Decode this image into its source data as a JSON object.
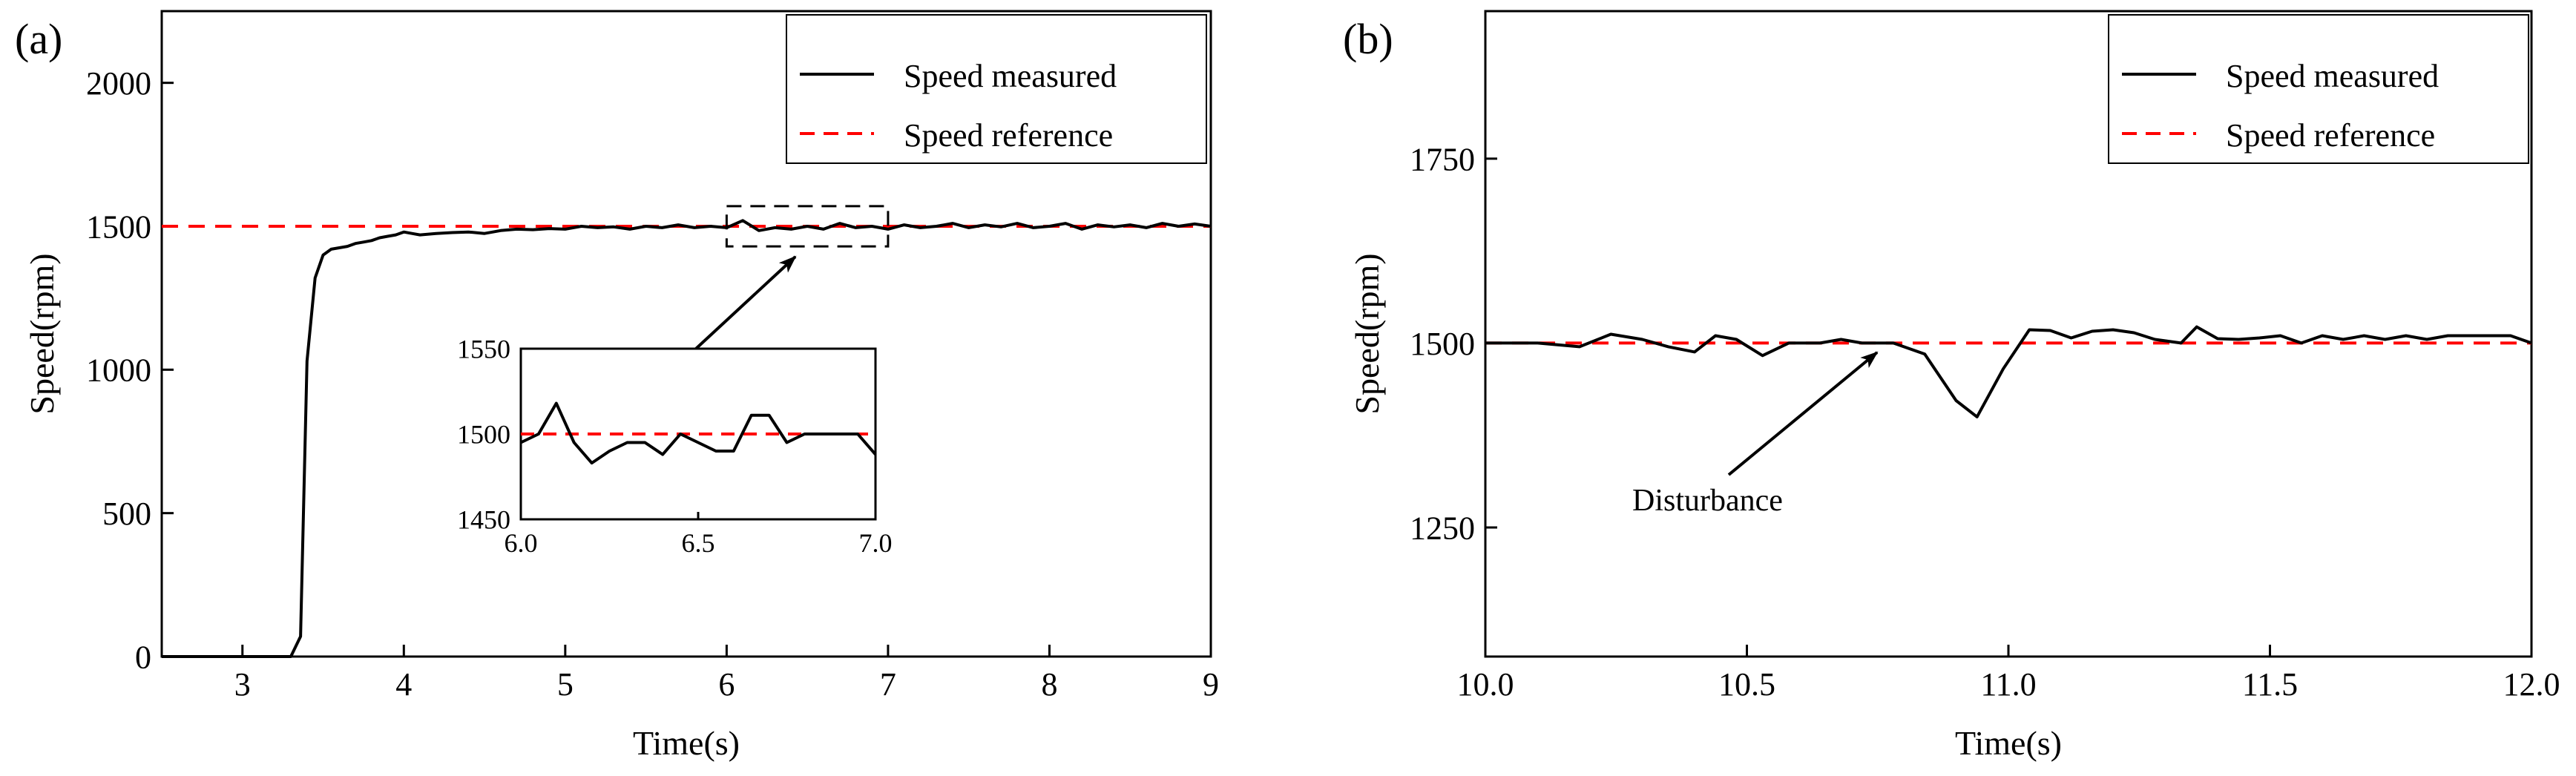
{
  "chart_data": [
    {
      "panel": "(a)",
      "type": "line",
      "xlabel": "Time(s)",
      "ylabel": "Speed(rpm)",
      "xlim": [
        2.5,
        9
      ],
      "ylim": [
        0,
        2250
      ],
      "xticks": [
        "3",
        "4",
        "5",
        "6",
        "7",
        "8",
        "9"
      ],
      "yticks": [
        "0",
        "500",
        "1000",
        "1500",
        "2000"
      ],
      "legend": {
        "position": "top-right",
        "entries": [
          "Speed measured",
          "Speed reference"
        ]
      },
      "series": [
        {
          "name": "Speed measured",
          "style": "solid",
          "color": "#000000",
          "x": [
            2.5,
            3.3,
            3.36,
            3.4,
            3.45,
            3.5,
            3.55,
            3.6,
            3.65,
            3.7,
            3.75,
            3.8,
            3.85,
            3.9,
            3.95,
            4.0,
            4.05,
            4.1,
            4.2,
            4.3,
            4.4,
            4.5,
            4.6,
            4.7,
            4.8,
            4.9,
            5.0,
            5.1,
            5.2,
            5.3,
            5.4,
            5.5,
            5.6,
            5.7,
            5.8,
            5.9,
            6.0,
            6.1,
            6.2,
            6.3,
            6.4,
            6.5,
            6.6,
            6.7,
            6.8,
            6.9,
            7.0,
            7.1,
            7.2,
            7.3,
            7.4,
            7.5,
            7.6,
            7.7,
            7.8,
            7.9,
            8.0,
            8.1,
            8.2,
            8.3,
            8.4,
            8.5,
            8.6,
            8.7,
            8.8,
            8.9,
            9.0
          ],
          "y": [
            0,
            0,
            70,
            1030,
            1320,
            1400,
            1420,
            1425,
            1430,
            1440,
            1445,
            1450,
            1460,
            1465,
            1470,
            1480,
            1475,
            1470,
            1475,
            1478,
            1480,
            1475,
            1485,
            1490,
            1488,
            1492,
            1490,
            1500,
            1495,
            1498,
            1490,
            1500,
            1495,
            1505,
            1495,
            1500,
            1495,
            1520,
            1485,
            1495,
            1490,
            1500,
            1490,
            1510,
            1495,
            1500,
            1490,
            1505,
            1495,
            1500,
            1510,
            1495,
            1505,
            1498,
            1510,
            1495,
            1500,
            1510,
            1490,
            1505,
            1498,
            1505,
            1495,
            1510,
            1500,
            1508,
            1500
          ]
        },
        {
          "name": "Speed reference",
          "style": "dashed",
          "color": "#ff0000",
          "x": [
            2.5,
            9
          ],
          "y": [
            1500,
            1500
          ]
        }
      ],
      "inset": {
        "xlim": [
          6.0,
          7.0
        ],
        "ylim": [
          1450,
          1550
        ],
        "xticks": [
          "6.0",
          "6.5",
          "7.0"
        ],
        "yticks": [
          "1450",
          "1500",
          "1550"
        ],
        "measured": {
          "x": [
            6.0,
            6.05,
            6.1,
            6.15,
            6.2,
            6.25,
            6.3,
            6.35,
            6.4,
            6.45,
            6.5,
            6.55,
            6.6,
            6.65,
            6.7,
            6.75,
            6.8,
            6.85,
            6.9,
            6.95,
            7.0
          ],
          "y": [
            1495,
            1500,
            1518,
            1495,
            1483,
            1490,
            1495,
            1495,
            1488,
            1500,
            1495,
            1490,
            1490,
            1511,
            1511,
            1495,
            1500,
            1500,
            1500,
            1500,
            1488
          ]
        },
        "reference": 1500,
        "zoom_box_x": [
          6.0,
          7.0
        ],
        "zoom_box_y": [
          1430,
          1570
        ]
      }
    },
    {
      "panel": "(b)",
      "type": "line",
      "xlabel": "Time(s)",
      "ylabel": "Speed(rpm)",
      "xlim": [
        10.0,
        12.0
      ],
      "ylim": [
        1075,
        1950
      ],
      "xticks": [
        "10.0",
        "10.5",
        "11.0",
        "11.5",
        "12.0"
      ],
      "yticks": [
        "1250",
        "1500",
        "1750"
      ],
      "legend": {
        "position": "top-right",
        "entries": [
          "Speed measured",
          "Speed reference"
        ]
      },
      "series": [
        {
          "name": "Speed measured",
          "style": "solid",
          "color": "#000000",
          "x": [
            10.0,
            10.1,
            10.18,
            10.24,
            10.3,
            10.35,
            10.4,
            10.44,
            10.48,
            10.53,
            10.58,
            10.64,
            10.68,
            10.72,
            10.78,
            10.84,
            10.9,
            10.94,
            10.99,
            11.04,
            11.08,
            11.12,
            11.16,
            11.2,
            11.24,
            11.28,
            11.33,
            11.36,
            11.4,
            11.44,
            11.48,
            11.52,
            11.56,
            11.6,
            11.64,
            11.68,
            11.72,
            11.76,
            11.8,
            11.84,
            11.88,
            11.92,
            11.96,
            12.0
          ],
          "y": [
            1500,
            1500,
            1495,
            1512,
            1505,
            1495,
            1488,
            1510,
            1505,
            1483,
            1500,
            1500,
            1505,
            1500,
            1500,
            1485,
            1422,
            1400,
            1465,
            1518,
            1517,
            1507,
            1516,
            1518,
            1514,
            1505,
            1500,
            1522,
            1506,
            1505,
            1507,
            1510,
            1500,
            1510,
            1505,
            1510,
            1505,
            1510,
            1505,
            1510,
            1510,
            1510,
            1510,
            1500
          ]
        },
        {
          "name": "Speed reference",
          "style": "dashed",
          "color": "#ff0000",
          "x": [
            10.0,
            12.0
          ],
          "y": [
            1500,
            1500
          ]
        }
      ],
      "annotations": [
        {
          "text": "Disturbance",
          "arrow_to": [
            10.85,
            1500
          ]
        }
      ]
    }
  ]
}
